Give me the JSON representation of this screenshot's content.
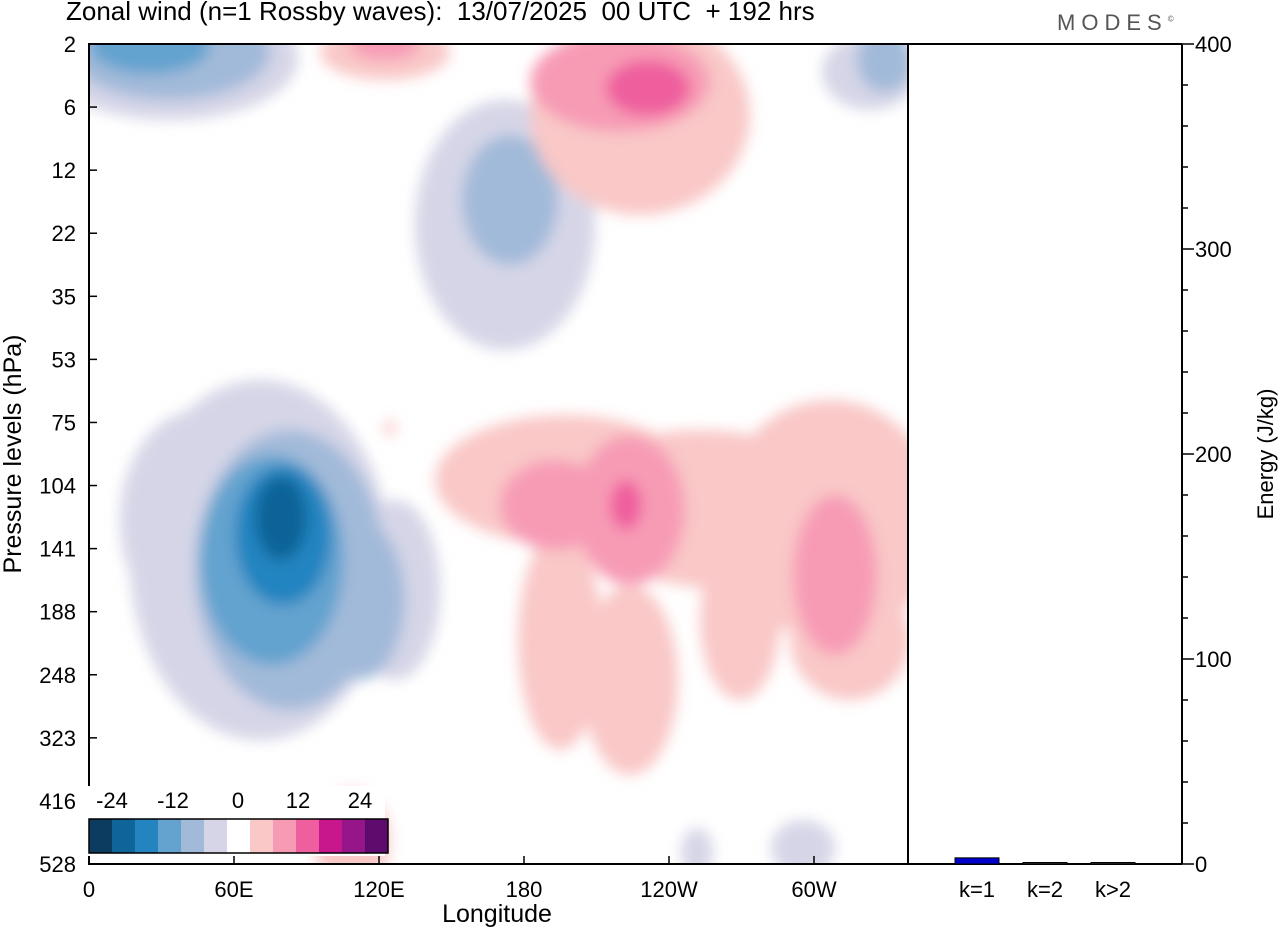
{
  "title": "Zonal wind (n=1 Rossby waves):  13/07/2025  00 UTC  + 192 hrs",
  "brand": "MODES",
  "brand_mark": "©",
  "colors": {
    "scale": [
      "#0c3d60",
      "#0f6498",
      "#2384c0",
      "#64a3cf",
      "#a2bad9",
      "#d5d5e7",
      "#ffffff",
      "#f9c8c7",
      "#f79bb5",
      "#ef5e9e",
      "#c8178c",
      "#961689",
      "#5f0a6d"
    ],
    "bar": "#0000cc"
  },
  "chart_data": [
    {
      "type": "heatmap",
      "title": "Zonal wind (n=1 Rossby waves):  13/07/2025  00 UTC  + 192 hrs",
      "xlabel": "Longitude",
      "ylabel": "Pressure levels (hPa)",
      "x_ticks": [
        "0",
        "60E",
        "120E",
        "180",
        "120W",
        "60W"
      ],
      "y_ticks": [
        "2",
        "6",
        "12",
        "22",
        "35",
        "53",
        "75",
        "104",
        "141",
        "188",
        "248",
        "323",
        "416",
        "528"
      ],
      "colorbar": {
        "levels": [
          -30,
          -25,
          -20,
          -15,
          -10,
          -5,
          0,
          5,
          10,
          15,
          20,
          25,
          30
        ],
        "labels": [
          "-24",
          "-12",
          "0",
          "12",
          "24"
        ]
      },
      "features": [
        {
          "lon": 35,
          "p_index": 0.4,
          "value": -12
        },
        {
          "lon": 183,
          "p_index": 2.3,
          "value": -8
        },
        {
          "lon": 50,
          "p_index": 7.7,
          "value": -26
        },
        {
          "lon": 216,
          "p_index": 0.7,
          "value": 16
        },
        {
          "lon": 225,
          "p_index": 7.3,
          "value": 10
        },
        {
          "lon": 290,
          "p_index": 8.3,
          "value": 9
        },
        {
          "lon": 115,
          "p_index": 13,
          "value": 5
        }
      ]
    },
    {
      "type": "bar",
      "categories": [
        "k=1",
        "k=2",
        "k>2"
      ],
      "values": [
        3,
        0.5,
        0.5
      ],
      "ylabel": "Energy (J/kg)",
      "ylim": [
        0,
        400
      ],
      "y_ticks": [
        "0",
        "100",
        "200",
        "300",
        "400"
      ]
    }
  ]
}
